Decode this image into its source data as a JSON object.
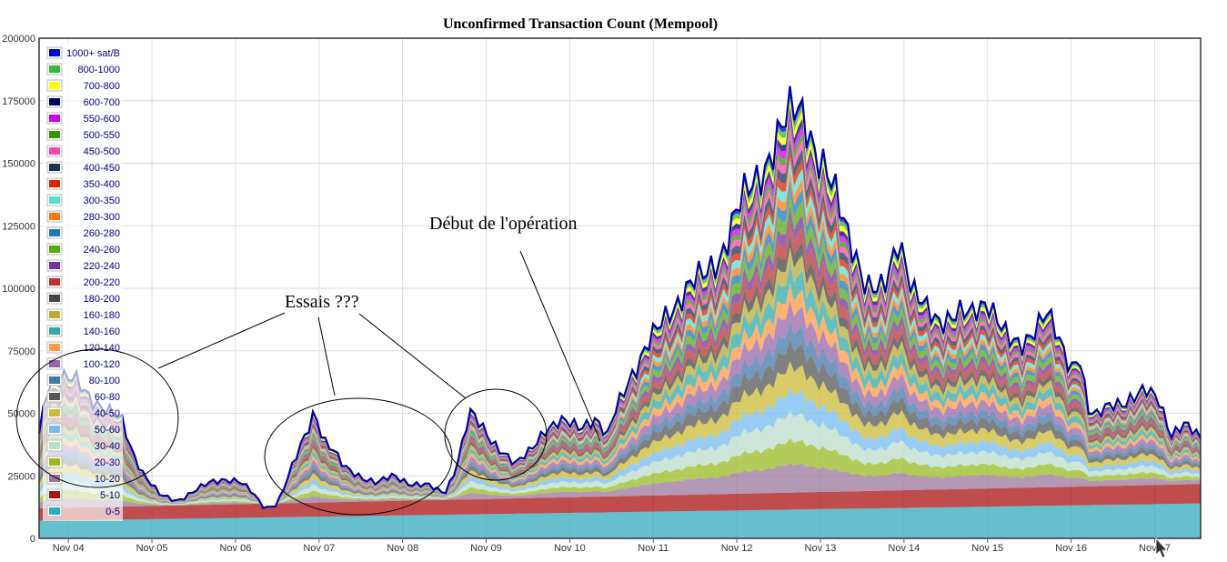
{
  "chart_data": {
    "type": "area",
    "stacked": true,
    "title": "Unconfirmed Transaction Count (Mempool)",
    "xlabel": "",
    "ylabel": "",
    "ylim": [
      0,
      200000
    ],
    "yticks": [
      0,
      25000,
      50000,
      75000,
      100000,
      125000,
      150000,
      175000,
      200000
    ],
    "xticks": [
      "Nov 04",
      "Nov 05",
      "Nov 06",
      "Nov 07",
      "Nov 08",
      "Nov 09",
      "Nov 10",
      "Nov 11",
      "Nov 12",
      "Nov 13",
      "Nov 14",
      "Nov 15",
      "Nov 16",
      "Nov 17"
    ],
    "xlim_days": [
      3.65,
      17.55
    ],
    "grid": true,
    "legend_position": "top-left",
    "total_color": "#0000aa",
    "total": [
      [
        3.65,
        42000
      ],
      [
        3.75,
        62000
      ],
      [
        3.9,
        64000
      ],
      [
        4.1,
        62000
      ],
      [
        4.3,
        56000
      ],
      [
        4.5,
        50000
      ],
      [
        4.65,
        46000
      ],
      [
        4.75,
        36000
      ],
      [
        4.9,
        26000
      ],
      [
        5.1,
        17000
      ],
      [
        5.3,
        15000
      ],
      [
        5.5,
        19000
      ],
      [
        5.7,
        22000
      ],
      [
        5.9,
        24000
      ],
      [
        6.05,
        23000
      ],
      [
        6.2,
        18000
      ],
      [
        6.35,
        12000
      ],
      [
        6.5,
        14000
      ],
      [
        6.6,
        22000
      ],
      [
        6.75,
        34000
      ],
      [
        6.85,
        42000
      ],
      [
        6.95,
        52000
      ],
      [
        7.05,
        40000
      ],
      [
        7.15,
        36000
      ],
      [
        7.3,
        28000
      ],
      [
        7.5,
        25000
      ],
      [
        7.7,
        22000
      ],
      [
        7.9,
        25000
      ],
      [
        8.1,
        22000
      ],
      [
        8.3,
        21000
      ],
      [
        8.5,
        18000
      ],
      [
        8.6,
        25000
      ],
      [
        8.7,
        36000
      ],
      [
        8.8,
        50000
      ],
      [
        8.9,
        46000
      ],
      [
        9.05,
        40000
      ],
      [
        9.2,
        35000
      ],
      [
        9.35,
        29000
      ],
      [
        9.5,
        34000
      ],
      [
        9.7,
        44000
      ],
      [
        9.9,
        46000
      ],
      [
        10.1,
        45000
      ],
      [
        10.3,
        48000
      ],
      [
        10.45,
        40000
      ],
      [
        10.55,
        51000
      ],
      [
        10.7,
        64000
      ],
      [
        10.85,
        72000
      ],
      [
        11.0,
        80000
      ],
      [
        11.2,
        92000
      ],
      [
        11.4,
        100000
      ],
      [
        11.6,
        104000
      ],
      [
        11.8,
        114000
      ],
      [
        12.0,
        130000
      ],
      [
        12.2,
        142000
      ],
      [
        12.4,
        155000
      ],
      [
        12.6,
        166000
      ],
      [
        12.75,
        173000
      ],
      [
        12.85,
        168000
      ],
      [
        12.95,
        155000
      ],
      [
        13.1,
        142000
      ],
      [
        13.25,
        130000
      ],
      [
        13.4,
        118000
      ],
      [
        13.55,
        100000
      ],
      [
        13.7,
        97000
      ],
      [
        13.8,
        103000
      ],
      [
        13.92,
        122000
      ],
      [
        14.0,
        115000
      ],
      [
        14.1,
        98000
      ],
      [
        14.25,
        91000
      ],
      [
        14.4,
        88000
      ],
      [
        14.6,
        90000
      ],
      [
        14.8,
        88000
      ],
      [
        15.0,
        97000
      ],
      [
        15.1,
        90000
      ],
      [
        15.25,
        78000
      ],
      [
        15.4,
        76000
      ],
      [
        15.55,
        85000
      ],
      [
        15.7,
        91000
      ],
      [
        15.85,
        78000
      ],
      [
        16.0,
        68000
      ],
      [
        16.1,
        76000
      ],
      [
        16.2,
        52000
      ],
      [
        16.3,
        48000
      ],
      [
        16.5,
        54000
      ],
      [
        16.7,
        56000
      ],
      [
        16.9,
        58000
      ],
      [
        17.05,
        56000
      ],
      [
        17.2,
        42000
      ],
      [
        17.35,
        45000
      ],
      [
        17.55,
        40000
      ]
    ],
    "series": [
      {
        "name": "1000+ sat/B",
        "color": "#0000cc"
      },
      {
        "name": "800-1000",
        "color": "#33bb33"
      },
      {
        "name": "700-800",
        "color": "#ffff00"
      },
      {
        "name": "600-700",
        "color": "#000066"
      },
      {
        "name": "550-600",
        "color": "#cc00ee"
      },
      {
        "name": "500-550",
        "color": "#339900"
      },
      {
        "name": "450-500",
        "color": "#ff44aa"
      },
      {
        "name": "400-450",
        "color": "#1a3355"
      },
      {
        "name": "350-400",
        "color": "#dd2200"
      },
      {
        "name": "300-350",
        "color": "#55e0d0"
      },
      {
        "name": "280-300",
        "color": "#ff7711"
      },
      {
        "name": "260-280",
        "color": "#2277bb"
      },
      {
        "name": "240-260",
        "color": "#55aa11"
      },
      {
        "name": "220-240",
        "color": "#773399"
      },
      {
        "name": "200-220",
        "color": "#bb3333"
      },
      {
        "name": "180-200",
        "color": "#444444"
      },
      {
        "name": "160-180",
        "color": "#bbaa33"
      },
      {
        "name": "140-160",
        "color": "#33aaaa"
      },
      {
        "name": "120-140",
        "color": "#ff9944"
      },
      {
        "name": "100-120",
        "color": "#9966aa"
      },
      {
        "name": "80-100",
        "color": "#4477aa"
      },
      {
        "name": "60-80",
        "color": "#555555"
      },
      {
        "name": "40-50",
        "color": "#ccbb33"
      },
      {
        "name": "50-60",
        "color": "#77bbee"
      },
      {
        "name": "30-40",
        "color": "#bbddcc"
      },
      {
        "name": "20-30",
        "color": "#99bb22"
      },
      {
        "name": "10-20",
        "color": "#997799"
      },
      {
        "name": "5-10",
        "color": "#aa1111"
      },
      {
        "name": "0-5",
        "color": "#33aabb"
      }
    ]
  },
  "annotations": {
    "essais": "Essais ???",
    "debut": "Début de l'opération"
  }
}
